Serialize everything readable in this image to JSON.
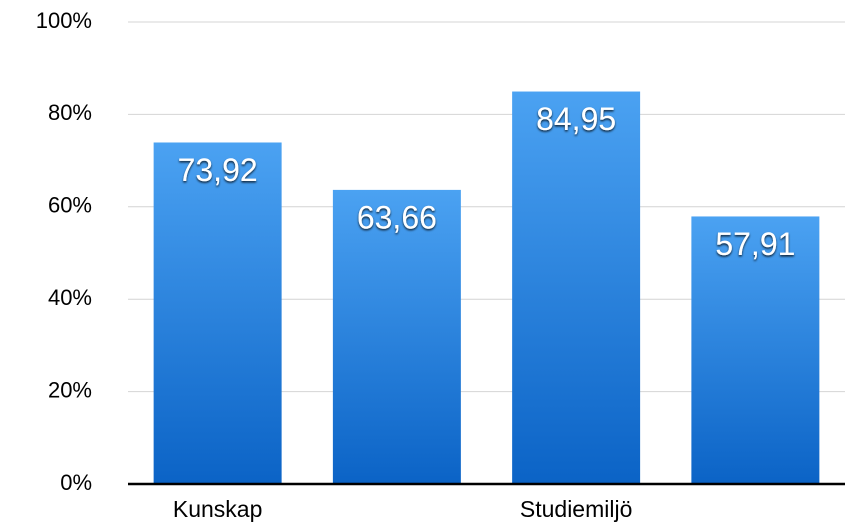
{
  "chart_data": {
    "type": "bar",
    "categories": [
      "Kunskap",
      null,
      "Studiemiljö",
      null
    ],
    "values": [
      73.92,
      63.66,
      84.95,
      57.91
    ],
    "value_labels": [
      "73,92",
      "63,66",
      "84,95",
      "57,91"
    ],
    "color": "#2f86e6",
    "ylim": [
      0,
      100
    ],
    "yticks": [
      {
        "value": 0,
        "label": "0%"
      },
      {
        "value": 20,
        "label": "20%"
      },
      {
        "value": 40,
        "label": "40%"
      },
      {
        "value": 60,
        "label": "60%"
      },
      {
        "value": 80,
        "label": "80%"
      },
      {
        "value": 100,
        "label": "100%"
      }
    ],
    "grid": true
  }
}
